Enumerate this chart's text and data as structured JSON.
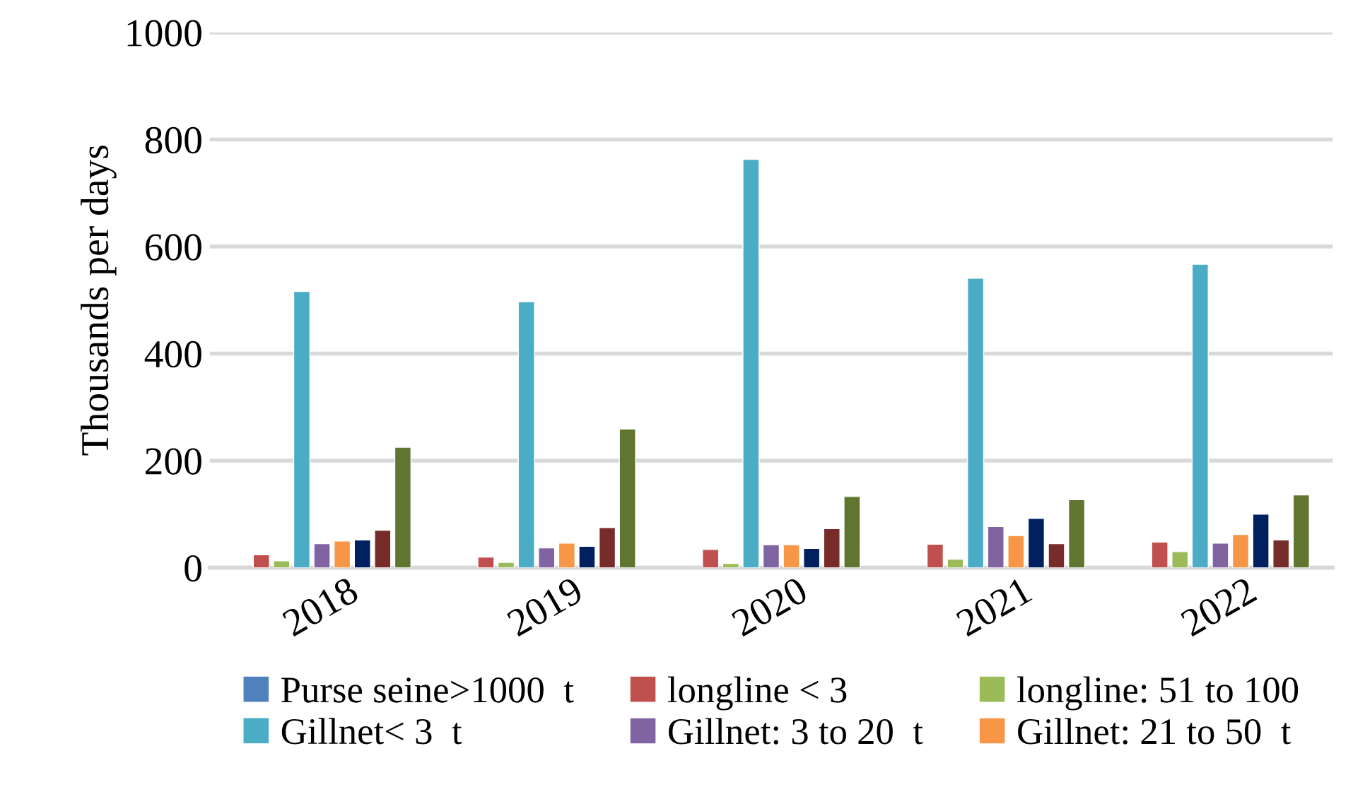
{
  "chart_data": {
    "type": "bar",
    "ylabel": "Thousands per days",
    "categories": [
      "2018",
      "2019",
      "2020",
      "2021",
      "2022"
    ],
    "ylim": [
      0,
      1000
    ],
    "yticks": [
      0,
      200,
      400,
      600,
      800,
      1000
    ],
    "grid": "y",
    "legend": "bottom",
    "series": [
      {
        "name": "Purse seine>1000  t",
        "color": "#4f81bd",
        "values": [
          null,
          null,
          null,
          null,
          null
        ]
      },
      {
        "name": "longline < 3",
        "color": "#c0504d",
        "values": [
          24,
          20,
          34,
          44,
          48
        ]
      },
      {
        "name": "longline: 51 to 100",
        "color": "#9bbb59",
        "values": [
          13,
          10,
          8,
          16,
          30
        ]
      },
      {
        "name": "Gillnet< 3  t",
        "color": "#4bacc6",
        "values": [
          516,
          497,
          763,
          541,
          567
        ]
      },
      {
        "name": "Gillnet: 3 to 20  t",
        "color": "#8064a2",
        "values": [
          45,
          37,
          43,
          77,
          46
        ]
      },
      {
        "name": "Gillnet: 21 to 50  t",
        "color": "#f79646",
        "values": [
          50,
          46,
          43,
          60,
          62
        ]
      },
      {
        "color": "#002060",
        "values": [
          52,
          40,
          36,
          92,
          100
        ]
      },
      {
        "color": "#772c2a",
        "values": [
          70,
          75,
          73,
          45,
          52
        ]
      },
      {
        "color": "#5f7530",
        "values": [
          225,
          259,
          133,
          127,
          136
        ]
      }
    ]
  }
}
